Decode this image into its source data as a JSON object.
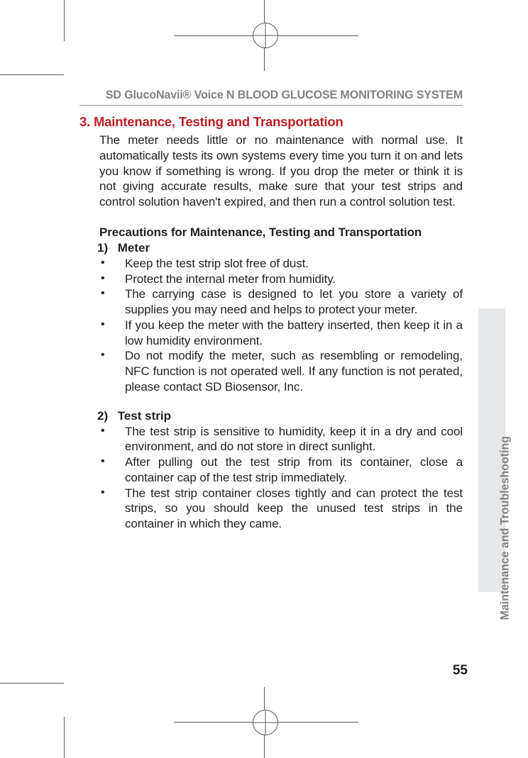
{
  "header": {
    "running_title": "SD GlucoNavii® Voice N BLOOD GLUCOSE MONITORING SYSTEM"
  },
  "section": {
    "number": "3.",
    "title": "Maintenance, Testing and Transportation",
    "intro": "The meter needs little or no maintenance with normal use. It automatically tests its own systems every time you turn it on and lets you know if something is wrong. If you drop the meter or think it is not giving accurate results, make sure that your test strips and control solution haven't expired, and then run a control solution test."
  },
  "precautions": {
    "title": "Precautions for Maintenance, Testing and Transportation",
    "sub1": {
      "num": "1)",
      "label": "Meter"
    },
    "bullets1": [
      "Keep the test strip slot free of dust.",
      "Protect the internal meter from humidity.",
      "The carrying case is designed to let you store a variety of supplies you may need and helps to protect your meter.",
      "If you keep the meter with the battery inserted, then keep it in a low humidity environment.",
      "Do not modify the meter, such as resembling or remodeling, NFC function is not operated well. If any function is not perated, please contact SD Biosensor, Inc."
    ],
    "sub2": {
      "num": "2)",
      "label": "Test strip"
    },
    "bullets2": [
      "The test strip is sensitive to humidity, keep it in a dry and cool environment, and do not store in direct sunlight.",
      "After pulling out the test strip from its container, close a container cap of the test strip immediately.",
      "The test strip container closes tightly and can protect the test strips, so you should keep the unused test strips in the container in which they came."
    ]
  },
  "sidebar": {
    "label": "Maintenance and Troubleshooting"
  },
  "page_number": "55",
  "colors": {
    "heading_red": "#bb2025",
    "grey_text": "#808285",
    "tab_bg": "#e6e7e8",
    "crop_mark": "#58595b",
    "body_text": "#231f20"
  }
}
